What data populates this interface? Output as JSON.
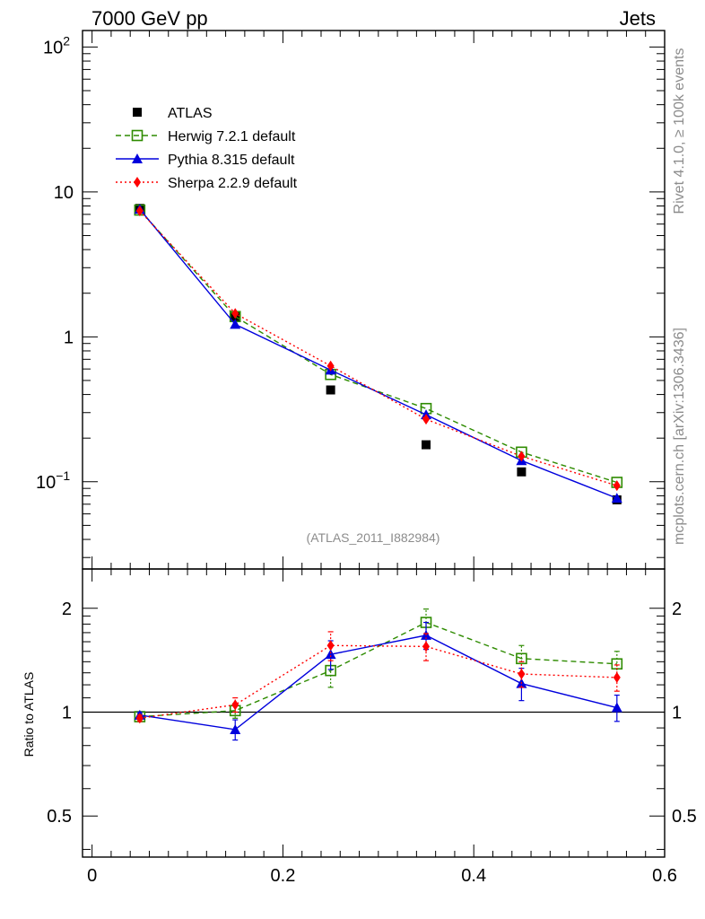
{
  "header": {
    "left": "7000 GeV pp",
    "right": "Jets"
  },
  "side_labels": {
    "rivet": "Rivet 4.1.0, ≥ 100k events",
    "mcplots": "mcplots.cern.ch [arXiv:1306.3436]"
  },
  "analysis_label": "(ATLAS_2011_I882984)",
  "colors": {
    "atlas": "#000000",
    "herwig": "#2e8b00",
    "pythia": "#0000dd",
    "sherpa": "#ff0000",
    "grey_text": "#8c8c8c"
  },
  "chart_data": [
    {
      "type": "scatter",
      "name": "main",
      "yscale": "log",
      "xlim": [
        -0.01,
        0.6
      ],
      "ylim": [
        0.025,
        130
      ],
      "xticks": [
        0,
        0.2,
        0.4,
        0.6
      ],
      "ytick_labels": [
        {
          "value": 0.1,
          "base": "10",
          "exp": "−1"
        },
        {
          "value": 1,
          "base": "1",
          "exp": ""
        },
        {
          "value": 10,
          "base": "10",
          "exp": ""
        },
        {
          "value": 100,
          "base": "10",
          "exp": "2"
        }
      ],
      "legend_position": "top-left",
      "series": [
        {
          "key": "atlas",
          "name": "ATLAS",
          "marker": "square",
          "line": "none",
          "x": [
            0.05,
            0.15,
            0.25,
            0.35,
            0.45,
            0.55
          ],
          "y": [
            7.7,
            1.38,
            0.43,
            0.18,
            0.117,
            0.075
          ]
        },
        {
          "key": "herwig",
          "name": "Herwig 7.2.1 default",
          "marker": "open-square",
          "line": "dashed",
          "x": [
            0.05,
            0.15,
            0.25,
            0.35,
            0.45,
            0.55
          ],
          "y": [
            7.5,
            1.38,
            0.55,
            0.32,
            0.16,
            0.099
          ]
        },
        {
          "key": "pythia",
          "name": "Pythia 8.315 default",
          "marker": "triangle",
          "line": "solid",
          "x": [
            0.05,
            0.15,
            0.25,
            0.35,
            0.45,
            0.55
          ],
          "y": [
            7.6,
            1.22,
            0.59,
            0.29,
            0.14,
            0.077
          ]
        },
        {
          "key": "sherpa",
          "name": "Sherpa 2.2.9 default",
          "marker": "diamond",
          "line": "dotted",
          "x": [
            0.05,
            0.15,
            0.25,
            0.35,
            0.45,
            0.55
          ],
          "y": [
            7.4,
            1.45,
            0.63,
            0.27,
            0.15,
            0.094
          ]
        }
      ]
    },
    {
      "type": "scatter",
      "name": "ratio",
      "yscale": "log",
      "ylabel": "Ratio to ATLAS",
      "xlim": [
        -0.01,
        0.6
      ],
      "ylim": [
        0.38,
        2.6
      ],
      "xticks": [
        0,
        0.2,
        0.4,
        0.6
      ],
      "ytick_labels": [
        {
          "value": 0.5,
          "label": "0.5"
        },
        {
          "value": 1,
          "label": "1"
        },
        {
          "value": 2,
          "label": "2"
        }
      ],
      "reference_line": 1,
      "series": [
        {
          "key": "herwig",
          "name": "Herwig 7.2.1 default",
          "x": [
            0.05,
            0.15,
            0.25,
            0.35,
            0.45,
            0.55
          ],
          "y": [
            0.97,
            1.01,
            1.32,
            1.82,
            1.43,
            1.38
          ],
          "err": [
            0.02,
            0.05,
            0.14,
            0.17,
            0.13,
            0.12
          ]
        },
        {
          "key": "pythia",
          "name": "Pythia 8.315 default",
          "x": [
            0.05,
            0.15,
            0.25,
            0.35,
            0.45,
            0.55
          ],
          "y": [
            0.98,
            0.89,
            1.47,
            1.67,
            1.21,
            1.03
          ],
          "err": [
            0.02,
            0.06,
            0.14,
            0.15,
            0.13,
            0.09
          ]
        },
        {
          "key": "sherpa",
          "name": "Sherpa 2.2.9 default",
          "x": [
            0.05,
            0.15,
            0.25,
            0.35,
            0.45,
            0.55
          ],
          "y": [
            0.96,
            1.05,
            1.56,
            1.55,
            1.29,
            1.26
          ],
          "err": [
            0.02,
            0.05,
            0.15,
            0.14,
            0.11,
            0.11
          ]
        }
      ]
    }
  ]
}
